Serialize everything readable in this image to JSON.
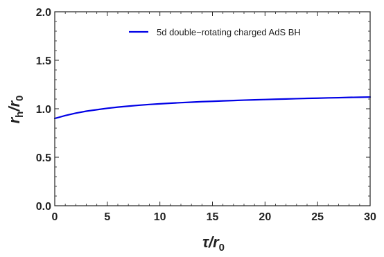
{
  "chart_data": {
    "type": "line",
    "title": "",
    "xlabel": {
      "main": "τ/r",
      "sub": "0"
    },
    "ylabel": {
      "main": "r",
      "sub1": "h",
      "mid": "/r",
      "sub2": "0"
    },
    "xlim": [
      0,
      30
    ],
    "ylim": [
      0.0,
      2.0
    ],
    "x_ticks": [
      0,
      5,
      10,
      15,
      20,
      25,
      30
    ],
    "x_tick_labels": [
      "0",
      "5",
      "10",
      "15",
      "20",
      "25",
      "30"
    ],
    "y_ticks": [
      0.0,
      0.5,
      1.0,
      1.5,
      2.0
    ],
    "y_tick_labels": [
      "0.0",
      "0.5",
      "1.0",
      "1.5",
      "2.0"
    ],
    "grid": false,
    "legend_position": "top-right",
    "series": [
      {
        "name": "5d double−rotating charged AdS BH",
        "color": "#0000e6",
        "x": [
          0,
          1,
          2,
          3,
          4,
          5,
          6,
          7,
          8,
          9,
          10,
          11,
          12,
          13,
          14,
          15,
          16,
          17,
          18,
          19,
          20,
          21,
          22,
          23,
          24,
          25,
          26,
          27,
          28,
          29,
          30
        ],
        "y": [
          0.9,
          0.93,
          0.955,
          0.975,
          0.99,
          1.005,
          1.017,
          1.027,
          1.036,
          1.044,
          1.051,
          1.057,
          1.063,
          1.068,
          1.073,
          1.077,
          1.081,
          1.085,
          1.089,
          1.092,
          1.095,
          1.098,
          1.101,
          1.104,
          1.107,
          1.109,
          1.112,
          1.114,
          1.117,
          1.119,
          1.121
        ]
      }
    ]
  }
}
